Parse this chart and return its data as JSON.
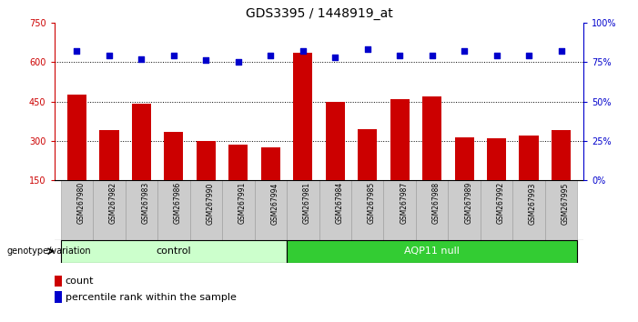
{
  "title": "GDS3395 / 1448919_at",
  "samples": [
    "GSM267980",
    "GSM267982",
    "GSM267983",
    "GSM267986",
    "GSM267990",
    "GSM267991",
    "GSM267994",
    "GSM267981",
    "GSM267984",
    "GSM267985",
    "GSM267987",
    "GSM267988",
    "GSM267989",
    "GSM267992",
    "GSM267993",
    "GSM267995"
  ],
  "counts": [
    475,
    340,
    440,
    335,
    300,
    285,
    275,
    635,
    450,
    345,
    460,
    470,
    315,
    310,
    320,
    340
  ],
  "percentiles": [
    82,
    79,
    77,
    79,
    76,
    75,
    79,
    82,
    78,
    83,
    79,
    79,
    82,
    79,
    79,
    82
  ],
  "control_count": 7,
  "aqp11_count": 9,
  "bar_color": "#cc0000",
  "dot_color": "#0000cc",
  "ylim_left": [
    150,
    750
  ],
  "ylim_right": [
    0,
    100
  ],
  "yticks_left": [
    150,
    300,
    450,
    600,
    750
  ],
  "yticks_right": [
    0,
    25,
    50,
    75,
    100
  ],
  "grid_values": [
    300,
    450,
    600
  ],
  "control_label": "control",
  "aqp11_label": "AQP11 null",
  "genotype_label": "genotype/variation",
  "legend_count": "count",
  "legend_percentile": "percentile rank within the sample",
  "control_bg": "#ccffcc",
  "aqp11_bg": "#33cc33",
  "xticklabel_bg": "#cccccc",
  "title_fontsize": 10,
  "axis_fontsize": 7,
  "bar_width": 0.6
}
